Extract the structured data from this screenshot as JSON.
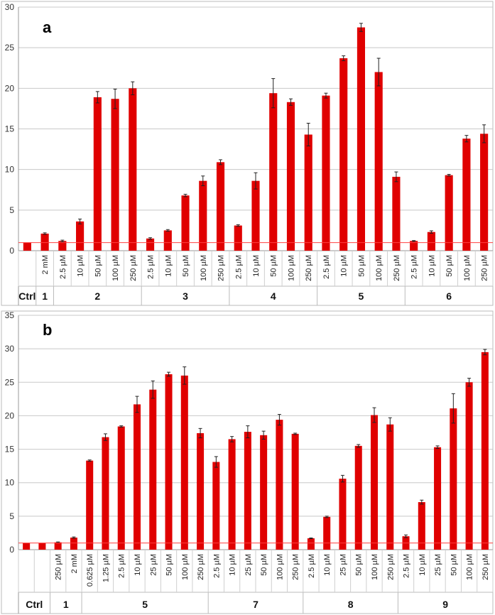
{
  "chart_data": [
    {
      "type": "bar",
      "panel_label": "a",
      "ylim": [
        0,
        30
      ],
      "yticks": [
        "0",
        "5",
        "10",
        "15",
        "20",
        "25",
        "30"
      ],
      "grid": true,
      "bar_color": "#e00000",
      "baseline_color": "#ff4040",
      "baseline_value": 1,
      "categories": [
        "",
        "2 mM",
        "2.5 µM",
        "10 µM",
        "50 µM",
        "100 µM",
        "250 µM",
        "2.5 µM",
        "10 µM",
        "50 µM",
        "100 µM",
        "250 µM",
        "2.5 µM",
        "10 µM",
        "50 µM",
        "100 µM",
        "250 µM",
        "2.5 µM",
        "10 µM",
        "50 µM",
        "100 µM",
        "250 µM",
        "2.5 µM",
        "10 µM",
        "50 µM",
        "100 µM",
        "250 µM"
      ],
      "values": [
        1.0,
        2.1,
        1.2,
        3.6,
        18.9,
        18.7,
        20.0,
        1.5,
        2.5,
        6.8,
        8.6,
        10.9,
        3.1,
        8.6,
        19.4,
        18.3,
        14.3,
        19.1,
        23.7,
        27.5,
        22.0,
        9.1,
        1.2,
        2.3,
        9.3,
        13.8,
        14.4
      ],
      "errors": [
        0.0,
        0.1,
        0.1,
        0.3,
        0.7,
        1.2,
        0.8,
        0.1,
        0.1,
        0.15,
        0.6,
        0.3,
        0.1,
        1.0,
        1.8,
        0.4,
        1.4,
        0.3,
        0.3,
        0.5,
        1.7,
        0.6,
        0.05,
        0.15,
        0.1,
        0.4,
        1.1
      ],
      "groups": [
        {
          "label": "Ctrl",
          "start": 0,
          "end": 0
        },
        {
          "label": "1",
          "start": 1,
          "end": 1
        },
        {
          "label": "2",
          "start": 2,
          "end": 6
        },
        {
          "label": "3",
          "start": 7,
          "end": 11
        },
        {
          "label": "4",
          "start": 12,
          "end": 16
        },
        {
          "label": "5",
          "start": 17,
          "end": 21
        },
        {
          "label": "6",
          "start": 22,
          "end": 26
        }
      ]
    },
    {
      "type": "bar",
      "panel_label": "b",
      "ylim": [
        0,
        35
      ],
      "yticks": [
        "0",
        "5",
        "10",
        "15",
        "20",
        "25",
        "30",
        "35"
      ],
      "grid": true,
      "bar_color": "#e00000",
      "baseline_color": "#ff4040",
      "baseline_value": 1,
      "categories": [
        "",
        "",
        "250 µM",
        "2 mM",
        "0.625 µM",
        "1.25 µM",
        "2.5 µM",
        "10 µM",
        "25 µM",
        "50 µM",
        "100 µM",
        "250 µM",
        "2.5 µM",
        "10 µM",
        "25 µM",
        "50 µM",
        "100 µM",
        "250 µM",
        "2.5 µM",
        "10 µM",
        "25 µM",
        "50 µM",
        "100 µM",
        "250 µM",
        "2.5 µM",
        "10 µM",
        "25 µM",
        "50 µM",
        "100 µM",
        "250 µM"
      ],
      "values": [
        1.0,
        1.0,
        1.1,
        1.8,
        13.3,
        16.8,
        18.4,
        21.7,
        23.9,
        26.2,
        26.0,
        17.4,
        13.1,
        16.5,
        17.6,
        17.1,
        19.4,
        17.3,
        1.7,
        4.9,
        10.6,
        15.5,
        20.1,
        18.7,
        2.0,
        7.1,
        15.3,
        21.1,
        25.0,
        29.5
      ],
      "errors": [
        0.0,
        0.0,
        0.05,
        0.1,
        0.1,
        0.5,
        0.1,
        1.2,
        1.3,
        0.3,
        1.3,
        0.7,
        0.8,
        0.4,
        0.9,
        0.6,
        0.8,
        0.1,
        0.05,
        0.1,
        0.5,
        0.2,
        1.1,
        1.0,
        0.2,
        0.3,
        0.2,
        2.2,
        0.6,
        0.4
      ],
      "groups": [
        {
          "label": "Ctrl",
          "start": 0,
          "end": 1
        },
        {
          "label": "1",
          "start": 2,
          "end": 3
        },
        {
          "label": "5",
          "start": 4,
          "end": 11
        },
        {
          "label": "7",
          "start": 12,
          "end": 17
        },
        {
          "label": "8",
          "start": 18,
          "end": 23
        },
        {
          "label": "9",
          "start": 24,
          "end": 29
        }
      ]
    }
  ]
}
